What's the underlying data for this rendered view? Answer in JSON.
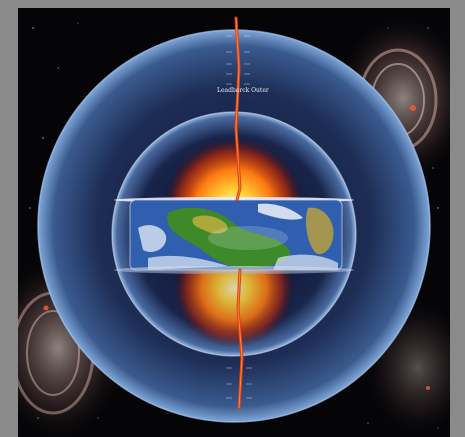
{
  "image": {
    "ring_label": "Leadbarck Outer",
    "colors": {
      "background": "#8a8a8a",
      "space": "#050508",
      "outer_shell": "#2f4a78",
      "inner_shell": "#1c2a4e",
      "core_glow": "#ffcc33",
      "crack": "#e04010",
      "ocean": "#2f5fae",
      "land": "#3e8a2a"
    }
  }
}
